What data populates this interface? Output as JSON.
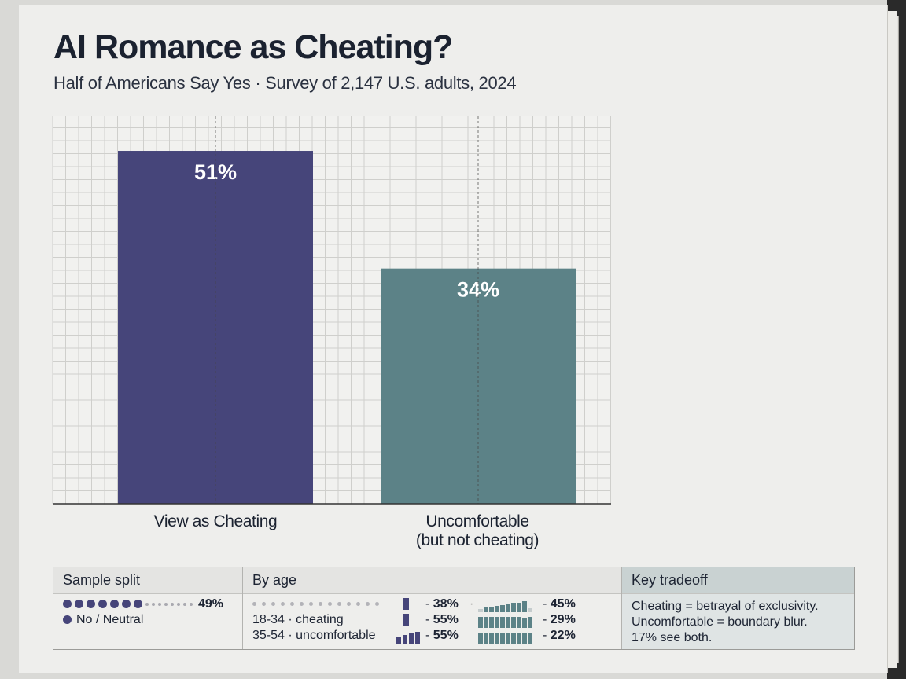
{
  "header": {
    "title": "AI Romance as Cheating?",
    "subtitle": "Half of Americans Say Yes · Survey of 2,147 U.S. adults, 2024"
  },
  "chart_data": {
    "type": "bar",
    "categories": [
      "View as Cheating",
      "Uncomfortable\n(but not cheating)"
    ],
    "values": [
      51,
      34
    ],
    "value_labels": [
      "51%",
      "34%"
    ],
    "colors": [
      "#46457a",
      "#5c8287"
    ],
    "ylim": [
      0,
      56
    ],
    "grid": true
  },
  "panel": {
    "sample": {
      "header": "Sample split",
      "value": "49%",
      "legend": "No / Neutral"
    },
    "age": {
      "header": "By age",
      "row1": {
        "label": "",
        "value_a": "38%",
        "value_b": "45%"
      },
      "row2": {
        "label": "18-34 · cheating",
        "value_a": "55%",
        "value_b": "29%"
      },
      "row3": {
        "label": "35-54 · uncomfortable",
        "value_a": "55%",
        "value_b": "22%"
      }
    },
    "tradeoff": {
      "header": "Key tradeoff",
      "lines": [
        "Cheating = betrayal of exclusivity.",
        "Uncomfortable = boundary blur.",
        "17% see both."
      ]
    }
  }
}
